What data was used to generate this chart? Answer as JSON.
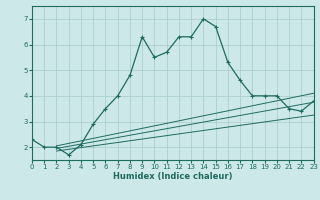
{
  "xlabel": "Humidex (Indice chaleur)",
  "ylabel": "",
  "background_color": "#cce8e8",
  "grid_color": "#aed0d0",
  "line_color": "#1e6b60",
  "xlim": [
    0,
    23
  ],
  "ylim": [
    1.5,
    7.5
  ],
  "xticks": [
    0,
    1,
    2,
    3,
    4,
    5,
    6,
    7,
    8,
    9,
    10,
    11,
    12,
    13,
    14,
    15,
    16,
    17,
    18,
    19,
    20,
    21,
    22,
    23
  ],
  "yticks": [
    2,
    3,
    4,
    5,
    6,
    7
  ],
  "curve1_x": [
    0,
    1,
    2,
    3,
    4,
    5,
    6,
    7,
    8,
    9,
    10,
    11,
    12,
    13,
    14,
    15,
    16,
    17,
    18,
    19,
    20,
    21,
    22,
    23
  ],
  "curve1_y": [
    2.3,
    2.0,
    2.0,
    1.7,
    2.1,
    2.9,
    3.5,
    4.0,
    4.8,
    6.3,
    5.5,
    5.7,
    6.3,
    6.3,
    7.0,
    6.7,
    5.3,
    4.6,
    4.0,
    4.0,
    4.0,
    3.5,
    3.4,
    3.8
  ],
  "curve2_x": [
    2,
    23
  ],
  "curve2_y": [
    1.85,
    3.25
  ],
  "curve3_x": [
    2,
    23
  ],
  "curve3_y": [
    1.95,
    3.75
  ],
  "curve4_x": [
    2,
    23
  ],
  "curve4_y": [
    2.05,
    4.1
  ]
}
